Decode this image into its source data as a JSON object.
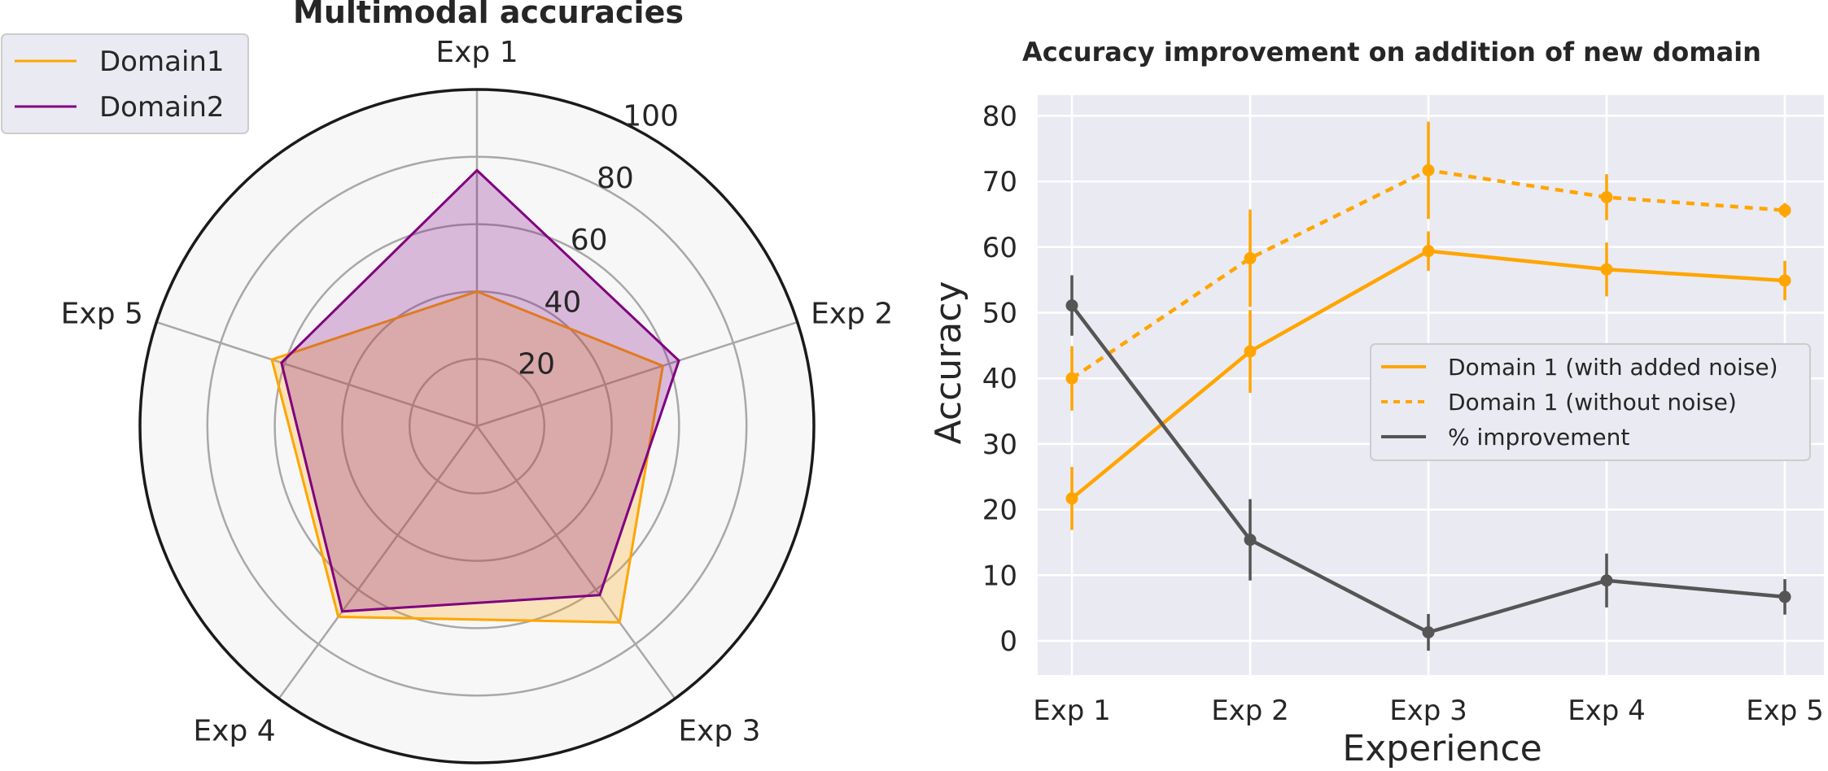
{
  "colors": {
    "domain1": "#FFA500",
    "domain2": "#800080",
    "improvement": "#555555",
    "radar_bg": "#F7F7F7",
    "line_bg": "#EAEAF2"
  },
  "chart_data": [
    {
      "type": "radar",
      "title": "Multimodal accuracies",
      "categories": [
        "Exp 1",
        "Exp 2",
        "Exp 3",
        "Exp 4",
        "Exp 5"
      ],
      "radial_ticks": [
        20,
        40,
        60,
        80,
        100
      ],
      "rlim": [
        0,
        100
      ],
      "legend": {
        "position": "top-left",
        "entries": [
          "Domain1",
          "Domain2"
        ]
      },
      "series": [
        {
          "name": "Domain1",
          "values": [
            40,
            58,
            72,
            70,
            64
          ]
        },
        {
          "name": "Domain2",
          "values": [
            76,
            63,
            62,
            68,
            61
          ]
        }
      ]
    },
    {
      "type": "line",
      "title": "Accuracy improvement on addition of new domain",
      "xlabel": "Experience",
      "ylabel": "Accuracy",
      "categories": [
        "Exp 1",
        "Exp 2",
        "Exp 3",
        "Exp 4",
        "Exp 5"
      ],
      "ylim": [
        -5,
        83
      ],
      "yticks": [
        0,
        10,
        20,
        30,
        40,
        50,
        60,
        70,
        80
      ],
      "grid": true,
      "legend": {
        "position": "center-right",
        "entries": [
          "Domain 1 (with added noise)",
          "Domain 1 (without noise)",
          "% improvement"
        ]
      },
      "series": [
        {
          "name": "Domain 1 (with added noise)",
          "style": "solid",
          "color": "#FFA500",
          "values": [
            21.7,
            44.1,
            59.4,
            56.6,
            54.9
          ],
          "errors": [
            4.8,
            6.3,
            3.0,
            4.1,
            3.0
          ]
        },
        {
          "name": "Domain 1 (without noise)",
          "style": "dashed",
          "color": "#FFA500",
          "values": [
            40.0,
            58.3,
            71.7,
            67.6,
            65.6
          ],
          "errors": [
            4.9,
            7.4,
            7.4,
            3.5,
            1.1
          ]
        },
        {
          "name": "% improvement",
          "style": "solid",
          "color": "#555555",
          "values": [
            51.1,
            15.4,
            1.3,
            9.2,
            6.7
          ],
          "errors": [
            4.6,
            6.2,
            2.8,
            4.1,
            2.7
          ]
        }
      ]
    }
  ]
}
